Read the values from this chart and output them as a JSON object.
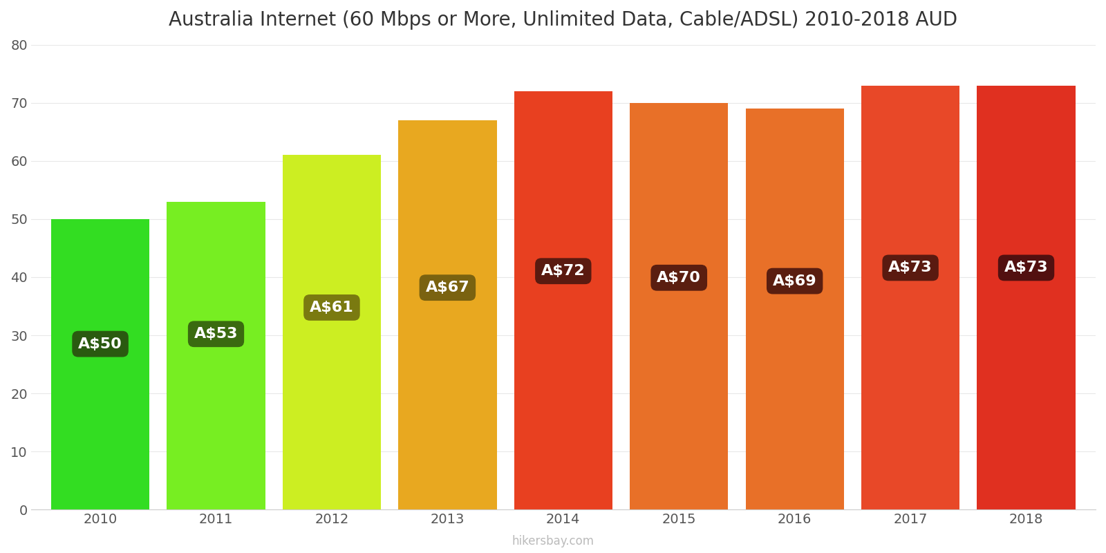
{
  "years": [
    2010,
    2011,
    2012,
    2013,
    2014,
    2015,
    2016,
    2017,
    2018
  ],
  "values": [
    50,
    53,
    61,
    67,
    72,
    70,
    69,
    73,
    73
  ],
  "labels": [
    "A$50",
    "A$53",
    "A$61",
    "A$67",
    "A$72",
    "A$70",
    "A$69",
    "A$73",
    "A$73"
  ],
  "bar_colors": [
    "#33dd22",
    "#77ee22",
    "#ccee22",
    "#e8a820",
    "#e84020",
    "#e87028",
    "#e87028",
    "#e84828",
    "#e03020"
  ],
  "label_bg_colors": [
    "#2a5a10",
    "#3a6a10",
    "#7a7a10",
    "#7a6210",
    "#5a1a10",
    "#5a1e10",
    "#5a1e10",
    "#5a1a10",
    "#521010"
  ],
  "title": "Australia Internet (60 Mbps or More, Unlimited Data, Cable/ADSL) 2010-2018 AUD",
  "ylabel_ticks": [
    0,
    10,
    20,
    30,
    40,
    50,
    60,
    70,
    80
  ],
  "ylim": [
    0,
    80
  ],
  "watermark": "hikersbay.com",
  "background_color": "#ffffff",
  "title_fontsize": 20,
  "label_fontsize": 16,
  "tick_fontsize": 14,
  "bar_width": 0.85
}
